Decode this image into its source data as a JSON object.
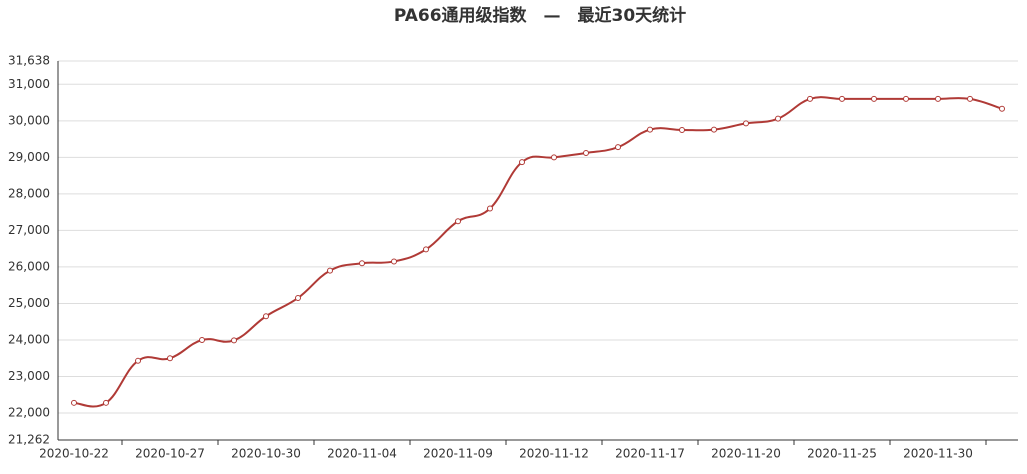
{
  "chart_data": {
    "type": "line",
    "title": "PA66通用级指数　—　最近30天统计",
    "categories": [
      "2020-10-22",
      null,
      null,
      "2020-10-27",
      null,
      null,
      "2020-10-30",
      null,
      null,
      "2020-11-04",
      null,
      null,
      "2020-11-09",
      null,
      null,
      "2020-11-12",
      null,
      null,
      "2020-11-17",
      null,
      null,
      "2020-11-20",
      null,
      null,
      "2020-11-25",
      null,
      null,
      "2020-11-30",
      null,
      null
    ],
    "series": [
      {
        "color": "#b03a36",
        "values": [
          22280,
          22280,
          23430,
          23500,
          24000,
          23990,
          24650,
          25150,
          25900,
          26100,
          26150,
          26480,
          27250,
          27600,
          28870,
          29000,
          29120,
          29280,
          29760,
          29750,
          29760,
          29930,
          30060,
          30600,
          30600,
          30600,
          30600,
          30600,
          30600,
          30330
        ]
      }
    ],
    "ylim": [
      21262,
      31638
    ],
    "yticks": [
      {
        "value": 21262,
        "label": "21,262"
      },
      {
        "value": 22000,
        "label": "22,000"
      },
      {
        "value": 23000,
        "label": "23,000"
      },
      {
        "value": 24000,
        "label": "24,000"
      },
      {
        "value": 25000,
        "label": "25,000"
      },
      {
        "value": 26000,
        "label": "26,000"
      },
      {
        "value": 27000,
        "label": "27,000"
      },
      {
        "value": 28000,
        "label": "28,000"
      },
      {
        "value": 29000,
        "label": "29,000"
      },
      {
        "value": 30000,
        "label": "30,000"
      },
      {
        "value": 31000,
        "label": "31,000"
      },
      {
        "value": 31638,
        "label": "31,638"
      }
    ],
    "grid": true
  }
}
